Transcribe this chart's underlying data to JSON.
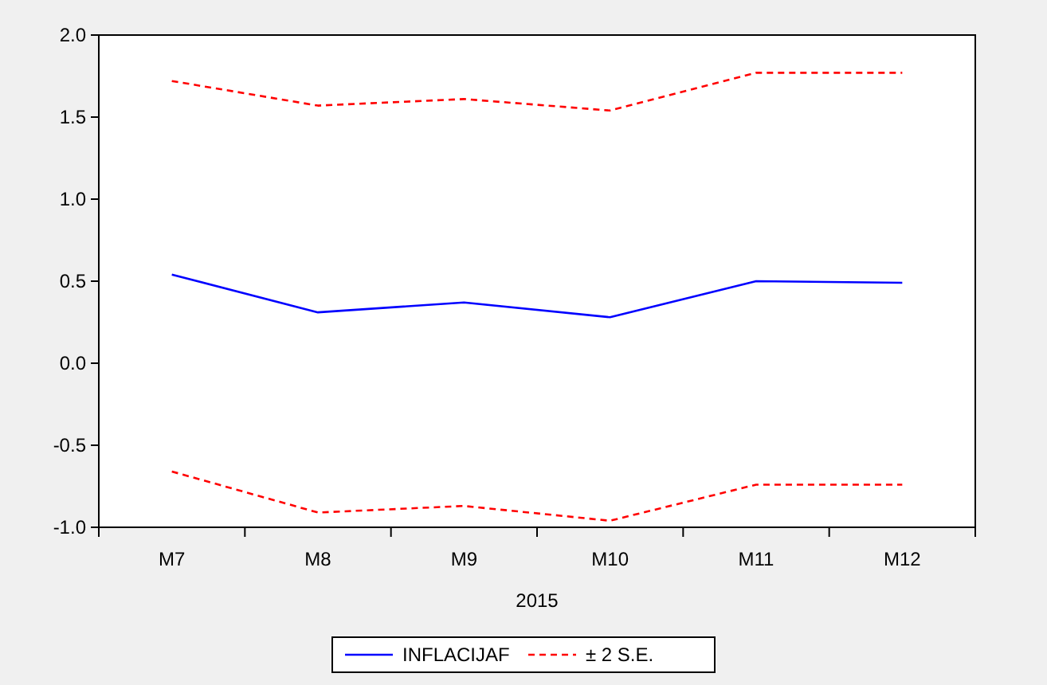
{
  "chart_data": {
    "type": "line",
    "xlabel": "2015",
    "categories": [
      "M7",
      "M8",
      "M9",
      "M10",
      "M11",
      "M12"
    ],
    "series": [
      {
        "name": "INFLACIJAF",
        "color": "#0000ff",
        "values": [
          0.54,
          0.31,
          0.37,
          0.28,
          0.5,
          0.49
        ]
      },
      {
        "name": "± 2 S.E.",
        "color": "#ff0000",
        "line_style": "dashed",
        "values": [
          1.72,
          1.57,
          1.61,
          1.54,
          1.77,
          1.77
        ]
      },
      {
        "color": "#ff0000",
        "line_style": "dashed",
        "values": [
          -0.66,
          -0.91,
          -0.87,
          -0.96,
          -0.74,
          -0.74
        ]
      }
    ],
    "ylim": [
      -1,
      2
    ],
    "yticks": [
      {
        "value": -1,
        "label": "-1.0"
      },
      {
        "value": -0.5,
        "label": "-0.5"
      },
      {
        "value": 0,
        "label": "0.0"
      },
      {
        "value": 0.5,
        "label": "0.5"
      },
      {
        "value": 1,
        "label": "1.0"
      },
      {
        "value": 1.5,
        "label": "1.5"
      },
      {
        "value": 2,
        "label": "2.0"
      }
    ],
    "grid": false,
    "legend": "bottom"
  }
}
